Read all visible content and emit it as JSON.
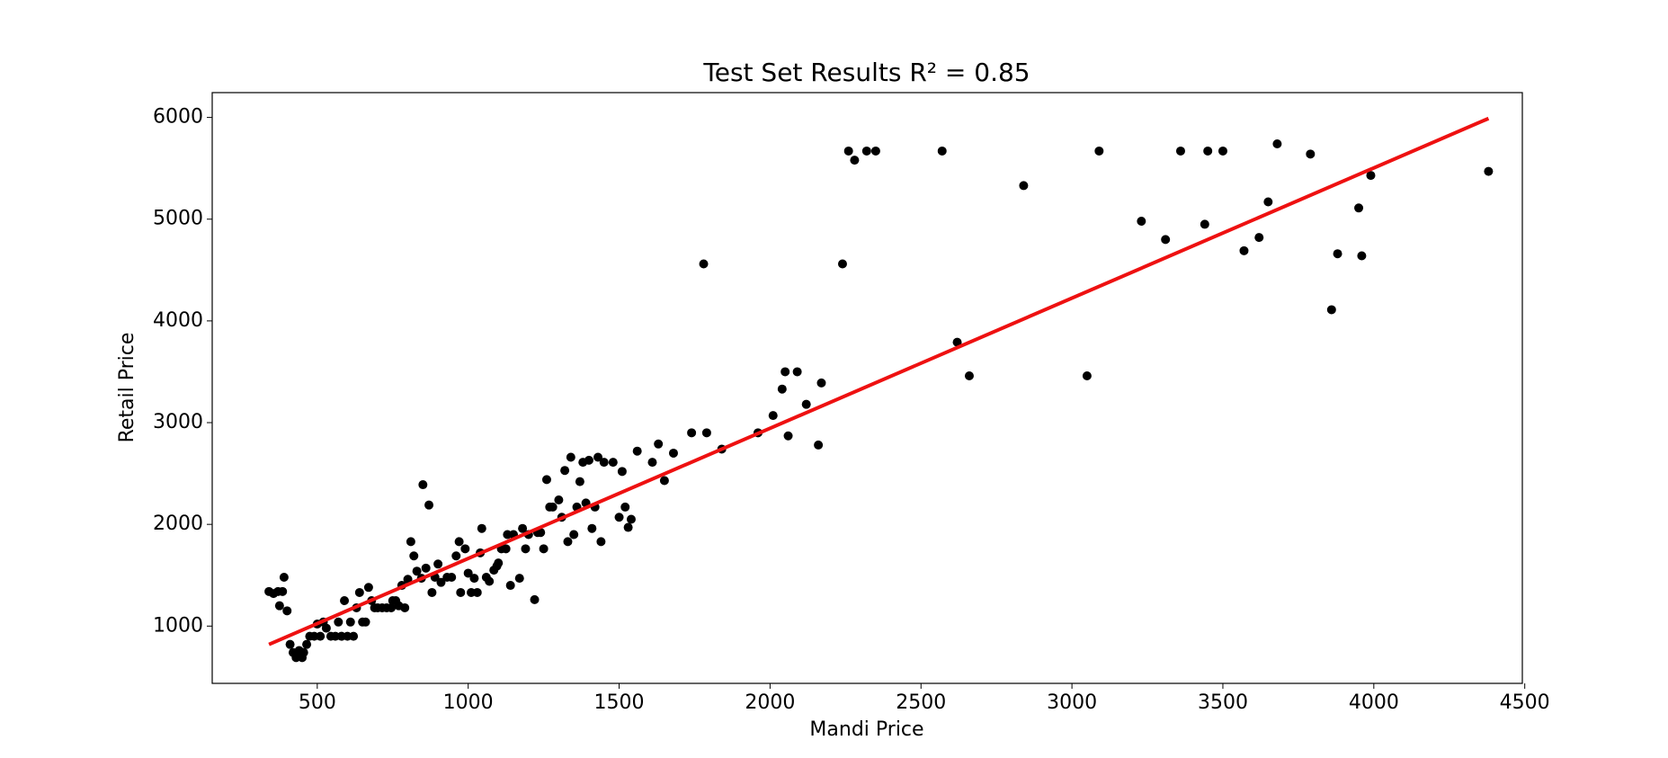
{
  "chart_data": {
    "type": "scatter",
    "title": "Test Set Results R² = 0.85",
    "xlabel": "Mandi Price",
    "ylabel": "Retail Price",
    "xlim": [
      152,
      4492
    ],
    "ylim": [
      437,
      6244
    ],
    "xticks": [
      500,
      1000,
      1500,
      2000,
      2500,
      3000,
      3500,
      4000,
      4500
    ],
    "yticks": [
      1000,
      2000,
      3000,
      4000,
      5000,
      6000
    ],
    "series": [
      {
        "type": "scatter",
        "color": "#000000",
        "x": [
          340,
          355,
          370,
          375,
          385,
          390,
          400,
          410,
          420,
          430,
          440,
          450,
          455,
          465,
          475,
          490,
          500,
          510,
          520,
          530,
          545,
          560,
          570,
          580,
          590,
          600,
          610,
          620,
          630,
          640,
          650,
          660,
          670,
          680,
          690,
          700,
          715,
          730,
          745,
          750,
          760,
          770,
          780,
          790,
          800,
          810,
          820,
          830,
          845,
          850,
          860,
          870,
          880,
          890,
          900,
          910,
          930,
          945,
          960,
          970,
          975,
          990,
          1000,
          1010,
          1020,
          1030,
          1040,
          1045,
          1060,
          1070,
          1085,
          1095,
          1100,
          1110,
          1125,
          1130,
          1140,
          1150,
          1170,
          1180,
          1190,
          1200,
          1220,
          1230,
          1240,
          1250,
          1260,
          1270,
          1280,
          1300,
          1310,
          1320,
          1330,
          1340,
          1350,
          1360,
          1370,
          1380,
          1390,
          1400,
          1410,
          1420,
          1430,
          1440,
          1450,
          1480,
          1500,
          1510,
          1520,
          1530,
          1540,
          1560,
          1610,
          1630,
          1650,
          1680,
          1740,
          1780,
          1790,
          1840,
          1960,
          2010,
          2040,
          2050,
          2060,
          2090,
          2120,
          2160,
          2170,
          2240,
          2260,
          2280,
          2320,
          2350,
          2570,
          2620,
          2660,
          2840,
          3050,
          3090,
          3230,
          3310,
          3360,
          3440,
          3450,
          3500,
          3570,
          3620,
          3650,
          3680,
          3790,
          3860,
          3880,
          3950,
          3960,
          3990,
          4380
        ],
        "y": [
          1340,
          1320,
          1340,
          1200,
          1340,
          1480,
          1150,
          820,
          740,
          690,
          760,
          690,
          740,
          820,
          900,
          900,
          1020,
          900,
          1040,
          980,
          900,
          900,
          1040,
          900,
          1250,
          900,
          1040,
          900,
          1180,
          1330,
          1040,
          1040,
          1380,
          1250,
          1180,
          1180,
          1180,
          1180,
          1180,
          1250,
          1250,
          1200,
          1400,
          1180,
          1460,
          1830,
          1690,
          1540,
          1470,
          2390,
          1570,
          2190,
          1330,
          1480,
          1610,
          1430,
          1480,
          1480,
          1690,
          1830,
          1330,
          1760,
          1520,
          1330,
          1470,
          1330,
          1720,
          1960,
          1480,
          1440,
          1550,
          1590,
          1620,
          1760,
          1760,
          1900,
          1400,
          1900,
          1470,
          1960,
          1760,
          1900,
          1260,
          1920,
          1920,
          1760,
          2440,
          2170,
          2170,
          2240,
          2070,
          2530,
          1830,
          2660,
          1900,
          2170,
          2420,
          2610,
          2210,
          2630,
          1960,
          2170,
          2660,
          1830,
          2610,
          2610,
          2070,
          2520,
          2170,
          1970,
          2050,
          2720,
          2610,
          2790,
          2430,
          2700,
          2900,
          4560,
          2900,
          2740,
          2900,
          3070,
          3330,
          3500,
          2870,
          3500,
          3180,
          2780,
          3390,
          4560,
          5670,
          5580,
          5670,
          5670,
          5670,
          3790,
          3460,
          5330,
          3460,
          5670,
          4980,
          4800,
          5670,
          4950,
          5670,
          5670,
          4690,
          4820,
          5170,
          5740,
          5640,
          4110,
          4660,
          5110,
          4640,
          5430,
          5470
        ]
      },
      {
        "type": "line",
        "color": "#ee1111",
        "x": [
          340,
          4380
        ],
        "y": [
          820,
          5990
        ]
      }
    ]
  }
}
